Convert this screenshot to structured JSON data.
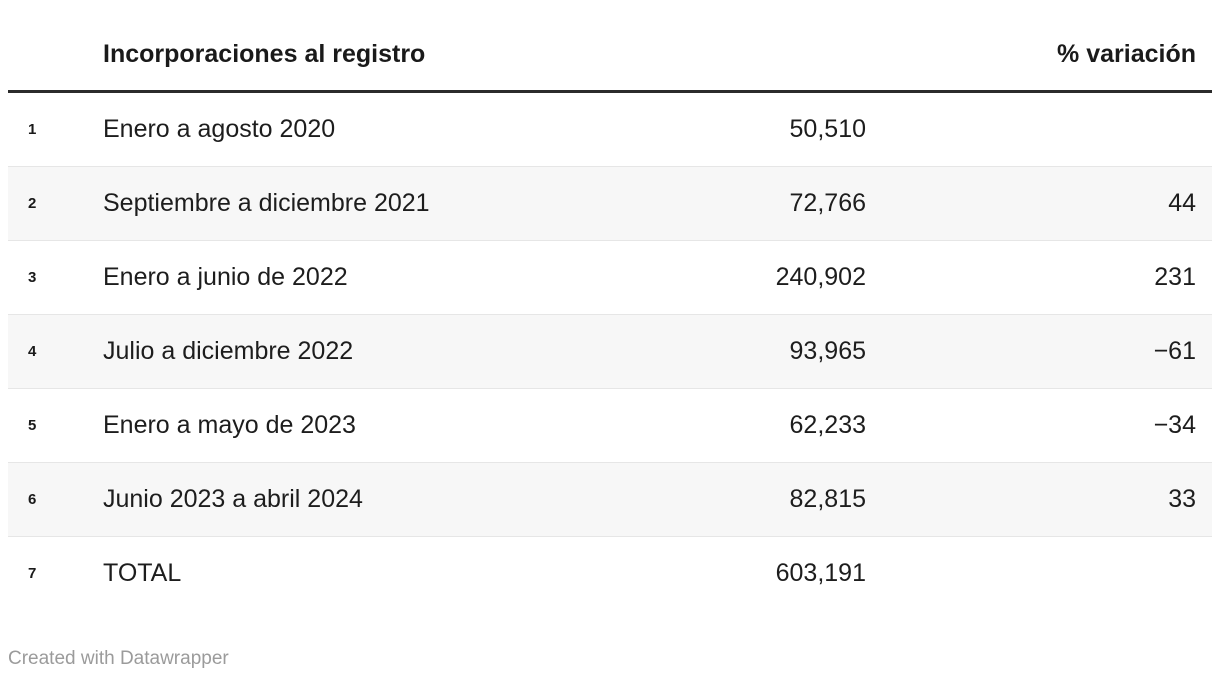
{
  "table": {
    "header": {
      "label_col": "Incorporaciones al registro",
      "variation_col": "% variación"
    },
    "rows": [
      {
        "num": "1",
        "label": "Enero a agosto 2020",
        "value": "50,510",
        "variation": ""
      },
      {
        "num": "2",
        "label": "Septiembre a diciembre 2021",
        "value": "72,766",
        "variation": "44"
      },
      {
        "num": "3",
        "label": "Enero a junio de 2022",
        "value": "240,902",
        "variation": "231"
      },
      {
        "num": "4",
        "label": "Julio a diciembre 2022",
        "value": "93,965",
        "variation": "−61"
      },
      {
        "num": "5",
        "label": "Enero a mayo de 2023",
        "value": "62,233",
        "variation": "−34"
      },
      {
        "num": "6",
        "label": "Junio 2023 a abril 2024",
        "value": "82,815",
        "variation": "33"
      },
      {
        "num": "7",
        "label": "TOTAL",
        "value": "603,191",
        "variation": ""
      }
    ]
  },
  "footer": {
    "attribution": "Created with Datawrapper"
  },
  "colors": {
    "text": "#1d1d1d",
    "header_rule": "#2b2b2b",
    "row_separator": "#e6e6e6",
    "zebra_row_bg": "#f7f7f7",
    "footer_text": "#9b9b9b"
  },
  "chart_data": {
    "type": "table",
    "title": "Incorporaciones al registro",
    "columns": [
      "row_number",
      "Incorporaciones al registro",
      "value",
      "% variación"
    ],
    "categories": [
      "Enero a agosto 2020",
      "Septiembre a diciembre 2021",
      "Enero a junio de 2022",
      "Julio a diciembre 2022",
      "Enero a mayo de 2023",
      "Junio 2023 a abril 2024"
    ],
    "values": [
      50510,
      72766,
      240902,
      93965,
      62233,
      82815
    ],
    "variations_pct": [
      null,
      44,
      231,
      -61,
      -34,
      33
    ],
    "total_label": "TOTAL",
    "total_value": 603191,
    "layout_hints": {
      "zebra_striping": true,
      "value_alignment": "right",
      "variation_alignment": "right"
    }
  }
}
